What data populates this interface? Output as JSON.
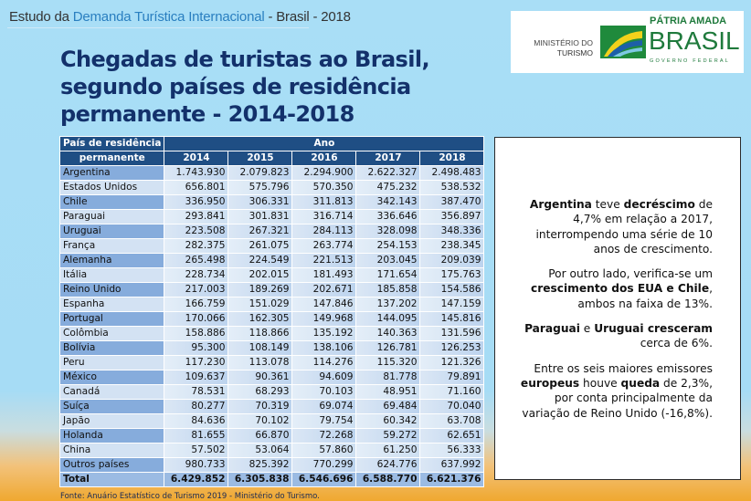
{
  "header": {
    "prefix": "Estudo da ",
    "highlight": "Demanda Turística Internacional",
    "suffix": " - Brasil - 2018"
  },
  "title_lines": [
    "Chegadas de turistas ao Brasil,",
    "segundo países de residência",
    "permanente - 2014-2018"
  ],
  "logo": {
    "ministry_line1": "MINISTÉRIO DO",
    "ministry_line2": "TURISMO",
    "slogan_top": "PÁTRIA AMADA",
    "slogan_main": "BRASIL",
    "slogan_bottom": "GOVERNO FEDERAL",
    "colors": {
      "green": "#1f7a3c",
      "yellow": "#f2d21b",
      "blue": "#1d5fa8"
    }
  },
  "table": {
    "country_header_line1": "País de residência",
    "country_header_line2": "permanente",
    "year_group_header": "Ano",
    "years": [
      "2014",
      "2015",
      "2016",
      "2017",
      "2018"
    ],
    "rows": [
      {
        "country": "Argentina",
        "values": [
          "1.743.930",
          "2.079.823",
          "2.294.900",
          "2.622.327",
          "2.498.483"
        ]
      },
      {
        "country": "Estados Unidos",
        "values": [
          "656.801",
          "575.796",
          "570.350",
          "475.232",
          "538.532"
        ]
      },
      {
        "country": "Chile",
        "values": [
          "336.950",
          "306.331",
          "311.813",
          "342.143",
          "387.470"
        ]
      },
      {
        "country": "Paraguai",
        "values": [
          "293.841",
          "301.831",
          "316.714",
          "336.646",
          "356.897"
        ]
      },
      {
        "country": "Uruguai",
        "values": [
          "223.508",
          "267.321",
          "284.113",
          "328.098",
          "348.336"
        ]
      },
      {
        "country": "França",
        "values": [
          "282.375",
          "261.075",
          "263.774",
          "254.153",
          "238.345"
        ]
      },
      {
        "country": "Alemanha",
        "values": [
          "265.498",
          "224.549",
          "221.513",
          "203.045",
          "209.039"
        ]
      },
      {
        "country": "Itália",
        "values": [
          "228.734",
          "202.015",
          "181.493",
          "171.654",
          "175.763"
        ]
      },
      {
        "country": "Reino Unido",
        "values": [
          "217.003",
          "189.269",
          "202.671",
          "185.858",
          "154.586"
        ]
      },
      {
        "country": "Espanha",
        "values": [
          "166.759",
          "151.029",
          "147.846",
          "137.202",
          "147.159"
        ]
      },
      {
        "country": "Portugal",
        "values": [
          "170.066",
          "162.305",
          "149.968",
          "144.095",
          "145.816"
        ]
      },
      {
        "country": "Colômbia",
        "values": [
          "158.886",
          "118.866",
          "135.192",
          "140.363",
          "131.596"
        ]
      },
      {
        "country": "Bolívia",
        "values": [
          "95.300",
          "108.149",
          "138.106",
          "126.781",
          "126.253"
        ]
      },
      {
        "country": "Peru",
        "values": [
          "117.230",
          "113.078",
          "114.276",
          "115.320",
          "121.326"
        ]
      },
      {
        "country": "México",
        "values": [
          "109.637",
          "90.361",
          "94.609",
          "81.778",
          "79.891"
        ]
      },
      {
        "country": "Canadá",
        "values": [
          "78.531",
          "68.293",
          "70.103",
          "48.951",
          "71.160"
        ]
      },
      {
        "country": "Suíça",
        "values": [
          "80.277",
          "70.319",
          "69.074",
          "69.484",
          "70.040"
        ]
      },
      {
        "country": "Japão",
        "values": [
          "84.636",
          "70.102",
          "79.754",
          "60.342",
          "63.708"
        ]
      },
      {
        "country": "Holanda",
        "values": [
          "81.655",
          "66.870",
          "72.268",
          "59.272",
          "62.651"
        ]
      },
      {
        "country": "China",
        "values": [
          "57.502",
          "53.064",
          "57.860",
          "61.250",
          "56.333"
        ]
      },
      {
        "country": "Outros países",
        "values": [
          "980.733",
          "825.392",
          "770.299",
          "624.776",
          "637.992"
        ]
      }
    ],
    "total": {
      "country": "Total",
      "values": [
        "6.429.852",
        "6.305.838",
        "6.546.696",
        "6.588.770",
        "6.621.376"
      ]
    },
    "header_color": "#1f4e84"
  },
  "source": "Fonte: Anuário Estatístico de Turismo 2019 - Ministério do Turismo.",
  "commentary": [
    [
      {
        "t": "Argentina",
        "b": true
      },
      {
        "t": " teve ",
        "b": false
      },
      {
        "t": "decréscimo",
        "b": true
      },
      {
        "t": " de 4,7% em relação a 2017, interrompendo uma série de 10 anos de crescimento.",
        "b": false
      }
    ],
    [
      {
        "t": "Por outro lado, verifica-se um ",
        "b": false
      },
      {
        "t": "crescimento dos EUA e Chile",
        "b": true
      },
      {
        "t": ", ambos na faixa de 13%.",
        "b": false
      }
    ],
    [
      {
        "t": "Paraguai",
        "b": true
      },
      {
        "t": " e ",
        "b": false
      },
      {
        "t": "Uruguai cresceram",
        "b": true
      },
      {
        "t": " cerca de 6%.",
        "b": false
      }
    ],
    [
      {
        "t": "Entre os seis maiores emissores ",
        "b": false
      },
      {
        "t": "europeus",
        "b": true
      },
      {
        "t": " houve ",
        "b": false
      },
      {
        "t": "queda",
        "b": true
      },
      {
        "t": " de 2,3%, por conta principalmente da variação de Reino Unido (-16,8%).",
        "b": false
      }
    ]
  ]
}
